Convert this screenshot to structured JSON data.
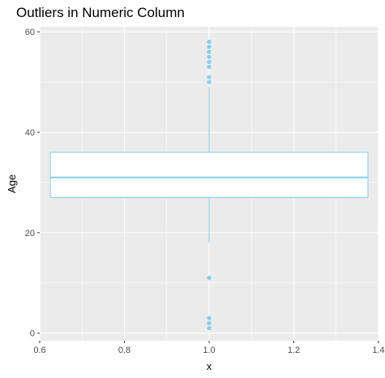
{
  "chart_data": {
    "type": "boxplot",
    "title": "Outliers in Numeric Column",
    "xlabel": "x",
    "ylabel": "Age",
    "xlim": [
      0.6,
      1.4
    ],
    "ylim": [
      -1.5,
      61
    ],
    "x_ticks": [
      0.6,
      0.8,
      1.0,
      1.2,
      1.4
    ],
    "x_tick_labels": [
      "0.6",
      "0.8",
      "1.0",
      "1.2",
      "1.4"
    ],
    "y_ticks": [
      0,
      20,
      40,
      60
    ],
    "y_tick_labels": [
      "0",
      "20",
      "40",
      "60"
    ],
    "grid": true,
    "box": {
      "x": 1.0,
      "x_from": 0.625,
      "x_to": 1.375,
      "q1": 27,
      "median": 31,
      "q3": 36,
      "whisker_low": 18,
      "whisker_high": 49
    },
    "outliers": [
      58,
      57,
      56,
      55,
      54,
      53,
      51,
      50,
      11,
      3,
      2,
      1
    ],
    "colors": {
      "panel_bg": "#ebebeb",
      "grid_major": "#ffffff",
      "box_stroke": "#87ceeb",
      "box_fill": "#ffffff",
      "point": "#87ceeb"
    }
  }
}
